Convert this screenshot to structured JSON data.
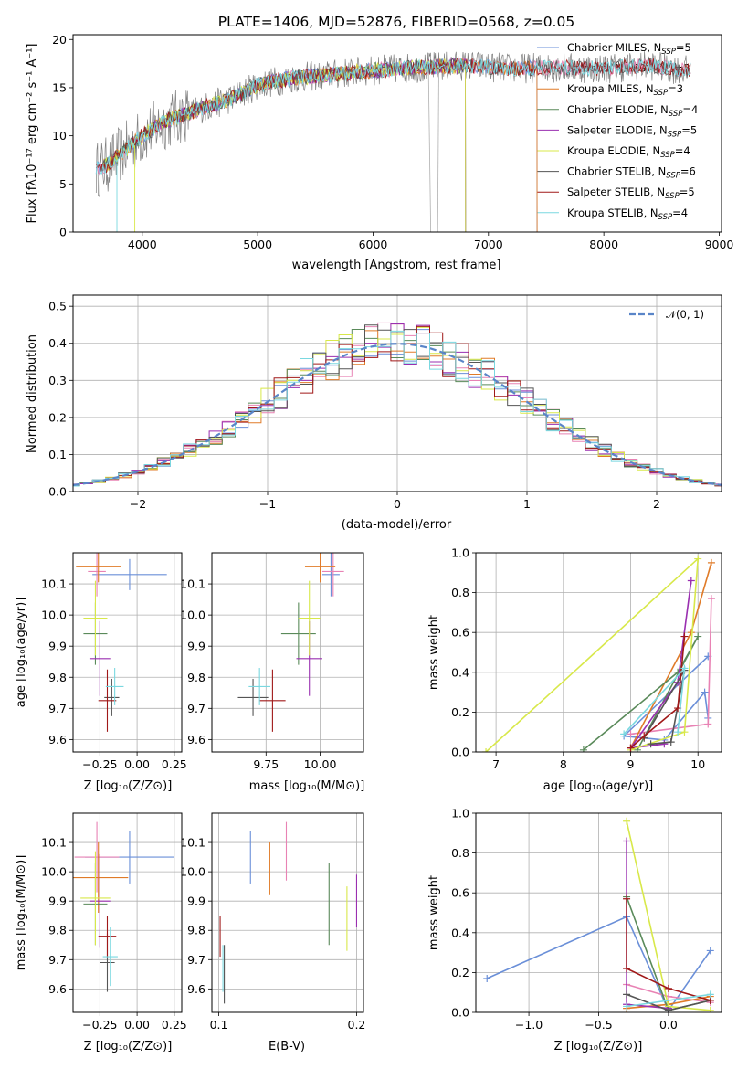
{
  "colors": {
    "s0": "#6a8fd8",
    "s1": "#e882b4",
    "s2": "#e07b28",
    "s3": "#5a8a5a",
    "s4": "#9a2fb0",
    "s5": "#d8e84a",
    "s6": "#555555",
    "s7": "#a01818",
    "s8": "#7ad8e0",
    "data": "#808080",
    "normal": "#5a85c8"
  },
  "chart_data": [
    {
      "id": "spectrum",
      "type": "line",
      "title": "PLATE=1406, MJD=52876, FIBERID=0568, z=0.05",
      "xlabel": "wavelength [Angstrom, rest frame]",
      "ylabel": "Flux [fλ10⁻¹⁷ erg cm⁻² s⁻¹ A⁻¹]",
      "xlim": [
        3400,
        9020
      ],
      "ylim": [
        0,
        20.5
      ],
      "xticks": [
        4000,
        5000,
        6000,
        7000,
        8000,
        9000
      ],
      "yticks": [
        0,
        5,
        10,
        15,
        20
      ],
      "grid": false,
      "legend_position": "right",
      "legend": [
        "Chabrier MILES, N_SSP=5",
        "Salpeter MILES, N_SSP=3",
        "Kroupa MILES, N_SSP=3",
        "Chabrier ELODIE, N_SSP=4",
        "Salpeter ELODIE, N_SSP=5",
        "Kroupa ELODIE, N_SSP=4",
        "Chabrier STELIB, N_SSP=6",
        "Salpeter STELIB, N_SSP=5",
        "Kroupa STELIB, N_SSP=4"
      ],
      "continuum": [
        [
          3600,
          6.5
        ],
        [
          3700,
          7.0
        ],
        [
          3800,
          8.0
        ],
        [
          3900,
          9.0
        ],
        [
          4000,
          10.0
        ],
        [
          4200,
          11.5
        ],
        [
          4500,
          12.8
        ],
        [
          4800,
          14.0
        ],
        [
          5000,
          15.3
        ],
        [
          5300,
          16.0
        ],
        [
          5600,
          16.3
        ],
        [
          6000,
          16.8
        ],
        [
          6400,
          17.1
        ],
        [
          6800,
          17.3
        ],
        [
          7200,
          17.0
        ],
        [
          7600,
          17.1
        ],
        [
          8000,
          17.0
        ],
        [
          8400,
          17.3
        ],
        [
          8700,
          16.8
        ]
      ],
      "data_range": [
        3600,
        8750
      ],
      "model_ranges": [
        [
          3600,
          7420
        ],
        [
          3600,
          8750
        ],
        [
          3650,
          7420
        ],
        [
          3650,
          6800
        ],
        [
          3900,
          6800
        ],
        [
          3650,
          6800
        ],
        [
          3600,
          8750
        ],
        [
          3600,
          8750
        ],
        [
          3600,
          8750
        ]
      ],
      "legend_labels": {
        "l0": "Chabrier MILES, N",
        "l1": "Salpeter MILES, N",
        "l2": "Kroupa MILES, N",
        "l3": "Chabrier ELODIE, N",
        "l4": "Salpeter ELODIE, N",
        "l5": "Kroupa ELODIE, N",
        "l6": "Chabrier STELIB, N",
        "l7": "Salpeter STELIB, N",
        "l8": "Kroupa STELIB, N",
        "sub": "SSP",
        "v0": "=5",
        "v1": "=3",
        "v2": "=3",
        "v3": "=4",
        "v4": "=5",
        "v5": "=4",
        "v6": "=6",
        "v7": "=5",
        "v8": "=4"
      }
    },
    {
      "id": "residuals",
      "type": "histogram",
      "xlabel": "(data-model)/error",
      "ylabel": "Normed distribution",
      "xlim": [
        -2.5,
        2.5
      ],
      "ylim": [
        0,
        0.53
      ],
      "xticks": [
        -2,
        -1,
        0,
        1,
        2
      ],
      "yticks": [
        0.0,
        0.1,
        0.2,
        0.3,
        0.4,
        0.5
      ],
      "grid": true,
      "legend": [
        "𝒩(0, 1)"
      ],
      "legend_position": "top-right",
      "bin_width": 0.1
    },
    {
      "id": "age_vs_Z",
      "type": "errorbar",
      "xlabel": "Z [log₁₀(Z/Z⊙)]",
      "ylabel": "age  [log₁₀(age/yr)]",
      "xlim": [
        -0.43,
        0.3
      ],
      "ylim": [
        9.56,
        10.2
      ],
      "xticks": [
        -0.25,
        0.0,
        0.25
      ],
      "yticks": [
        9.6,
        9.7,
        9.8,
        9.9,
        10.0,
        10.1
      ],
      "grid": true,
      "points": [
        [
          -0.05,
          10.13,
          0.25,
          0.05
        ],
        [
          -0.27,
          10.14,
          0.06,
          0.08
        ],
        [
          -0.26,
          10.155,
          0.15,
          0.05
        ],
        [
          -0.28,
          9.94,
          0.08,
          0.1
        ],
        [
          -0.25,
          9.86,
          0.07,
          0.12
        ],
        [
          -0.28,
          9.99,
          0.08,
          0.12
        ],
        [
          -0.17,
          9.735,
          0.05,
          0.06
        ],
        [
          -0.2,
          9.725,
          0.06,
          0.1
        ],
        [
          -0.15,
          9.77,
          0.06,
          0.06
        ]
      ]
    },
    {
      "id": "age_vs_mass",
      "type": "errorbar",
      "xlabel": "mass [log₁₀(M/M⊙)]",
      "ylabel": "",
      "xlim": [
        9.5,
        10.2
      ],
      "ylim": [
        9.56,
        10.2
      ],
      "xticks": [
        9.75,
        10.0
      ],
      "yticks": [
        9.6,
        9.7,
        9.8,
        9.9,
        10.0,
        10.1
      ],
      "grid": true,
      "points": [
        [
          10.05,
          10.13,
          0.04,
          0.07
        ],
        [
          10.06,
          10.14,
          0.05,
          0.08
        ],
        [
          10.0,
          10.155,
          0.07,
          0.05
        ],
        [
          9.9,
          9.94,
          0.08,
          0.1
        ],
        [
          9.95,
          9.86,
          0.06,
          0.12
        ],
        [
          9.95,
          9.99,
          0.05,
          0.12
        ],
        [
          9.69,
          9.735,
          0.07,
          0.06
        ],
        [
          9.78,
          9.725,
          0.06,
          0.1
        ],
        [
          9.72,
          9.77,
          0.05,
          0.06
        ]
      ]
    },
    {
      "id": "mw_vs_age",
      "type": "line",
      "xlabel": "age  [log₁₀(age/yr)]",
      "ylabel": "mass weight",
      "xlim": [
        6.7,
        10.35
      ],
      "ylim": [
        0,
        1.0
      ],
      "xticks": [
        7,
        8,
        9,
        10
      ],
      "yticks": [
        0.0,
        0.2,
        0.4,
        0.6,
        0.8,
        1.0
      ],
      "grid": true,
      "series": [
        [
          [
            10.15,
            0.17
          ],
          [
            10.1,
            0.3
          ],
          [
            9.5,
            0.06
          ],
          [
            8.9,
            0.08
          ],
          [
            10.15,
            0.48
          ]
        ],
        [
          [
            10.2,
            0.77
          ],
          [
            10.15,
            0.14
          ],
          [
            9.0,
            0.09
          ]
        ],
        [
          [
            10.2,
            0.95
          ],
          [
            9.9,
            0.6
          ],
          [
            9.0,
            0.02
          ]
        ],
        [
          [
            8.3,
            0.01
          ],
          [
            9.7,
            0.4
          ],
          [
            10.0,
            0.58
          ],
          [
            9.1,
            0.01
          ]
        ],
        [
          [
            9.9,
            0.86
          ],
          [
            9.7,
            0.35
          ],
          [
            9.0,
            0.02
          ],
          [
            9.5,
            0.04
          ]
        ],
        [
          [
            6.85,
            0.0
          ],
          [
            10.0,
            0.97
          ],
          [
            9.8,
            0.1
          ],
          [
            9.0,
            0.01
          ]
        ],
        [
          [
            9.3,
            0.04
          ],
          [
            9.6,
            0.05
          ],
          [
            9.8,
            0.41
          ],
          [
            9.2,
            0.07
          ]
        ],
        [
          [
            9.8,
            0.58
          ],
          [
            9.7,
            0.22
          ],
          [
            9.2,
            0.08
          ],
          [
            9.0,
            0.02
          ]
        ],
        [
          [
            9.7,
            0.1
          ],
          [
            9.8,
            0.42
          ],
          [
            8.9,
            0.09
          ]
        ]
      ]
    },
    {
      "id": "mass_vs_Z",
      "type": "errorbar",
      "xlabel": "Z [log₁₀(Z/Z⊙)]",
      "ylabel": "mass [log₁₀(M/M⊙)]",
      "xlim": [
        -0.43,
        0.3
      ],
      "ylim": [
        9.52,
        10.2
      ],
      "xticks": [
        -0.25,
        0.0,
        0.25
      ],
      "yticks": [
        9.6,
        9.7,
        9.8,
        9.9,
        10.0,
        10.1
      ],
      "grid": true,
      "points": [
        [
          -0.05,
          10.05,
          0.3,
          0.09
        ],
        [
          -0.27,
          10.05,
          0.15,
          0.12
        ],
        [
          -0.26,
          9.98,
          0.2,
          0.12
        ],
        [
          -0.28,
          9.89,
          0.08,
          0.14
        ],
        [
          -0.25,
          9.9,
          0.07,
          0.16
        ],
        [
          -0.28,
          9.91,
          0.1,
          0.16
        ],
        [
          -0.2,
          9.69,
          0.05,
          0.1
        ],
        [
          -0.2,
          9.78,
          0.06,
          0.07
        ],
        [
          -0.18,
          9.71,
          0.05,
          0.1
        ]
      ]
    },
    {
      "id": "mass_vs_ebv",
      "type": "errorbar",
      "xlabel": "E(B-V)",
      "ylabel": "",
      "xlim": [
        0.095,
        0.205
      ],
      "ylim": [
        9.52,
        10.2
      ],
      "xticks": [
        0.1,
        0.2
      ],
      "yticks": [
        9.6,
        9.7,
        9.8,
        9.9,
        10.0,
        10.1
      ],
      "grid": true,
      "points": [
        [
          0.123,
          10.05,
          0,
          0.09
        ],
        [
          0.149,
          10.07,
          0,
          0.1
        ],
        [
          0.137,
          10.01,
          0,
          0.09
        ],
        [
          0.18,
          9.89,
          0,
          0.14
        ],
        [
          0.2,
          9.9,
          0,
          0.09
        ],
        [
          0.193,
          9.84,
          0,
          0.11
        ],
        [
          0.104,
          9.65,
          0,
          0.1
        ],
        [
          0.101,
          9.78,
          0,
          0.07
        ],
        [
          0.103,
          9.67,
          0,
          0.08
        ]
      ]
    },
    {
      "id": "mw_vs_Z",
      "type": "line",
      "xlabel": "Z [log₁₀(Z/Z⊙)]",
      "ylabel": "mass weight",
      "xlim": [
        -1.38,
        0.38
      ],
      "ylim": [
        0,
        1.0
      ],
      "xticks": [
        -1.0,
        -0.5,
        0.0
      ],
      "yticks": [
        0.0,
        0.2,
        0.4,
        0.6,
        0.8,
        1.0
      ],
      "grid": true,
      "series": [
        [
          [
            -1.3,
            0.17
          ],
          [
            -0.3,
            0.48
          ],
          [
            0.0,
            0.01
          ],
          [
            0.3,
            0.31
          ]
        ],
        [
          [
            -0.3,
            0.14
          ],
          [
            0.0,
            0.08
          ],
          [
            0.3,
            0.05
          ]
        ],
        [
          [
            -0.3,
            0.02
          ],
          [
            0.0,
            0.04
          ],
          [
            0.3,
            0.08
          ]
        ],
        [
          [
            -0.3,
            0.58
          ],
          [
            0.0,
            0.01
          ],
          [
            0.3,
            0.06
          ]
        ],
        [
          [
            -0.3,
            0.86
          ],
          [
            -0.3,
            0.04
          ],
          [
            0.0,
            0.02
          ]
        ],
        [
          [
            -0.3,
            0.96
          ],
          [
            0.0,
            0.03
          ],
          [
            0.3,
            0.01
          ]
        ],
        [
          [
            -0.3,
            0.09
          ],
          [
            0.0,
            0.01
          ],
          [
            0.3,
            0.06
          ]
        ],
        [
          [
            -0.3,
            0.57
          ],
          [
            -0.3,
            0.22
          ],
          [
            0.0,
            0.12
          ],
          [
            0.3,
            0.06
          ]
        ],
        [
          [
            -0.3,
            0.03
          ],
          [
            0.3,
            0.09
          ]
        ]
      ]
    }
  ]
}
